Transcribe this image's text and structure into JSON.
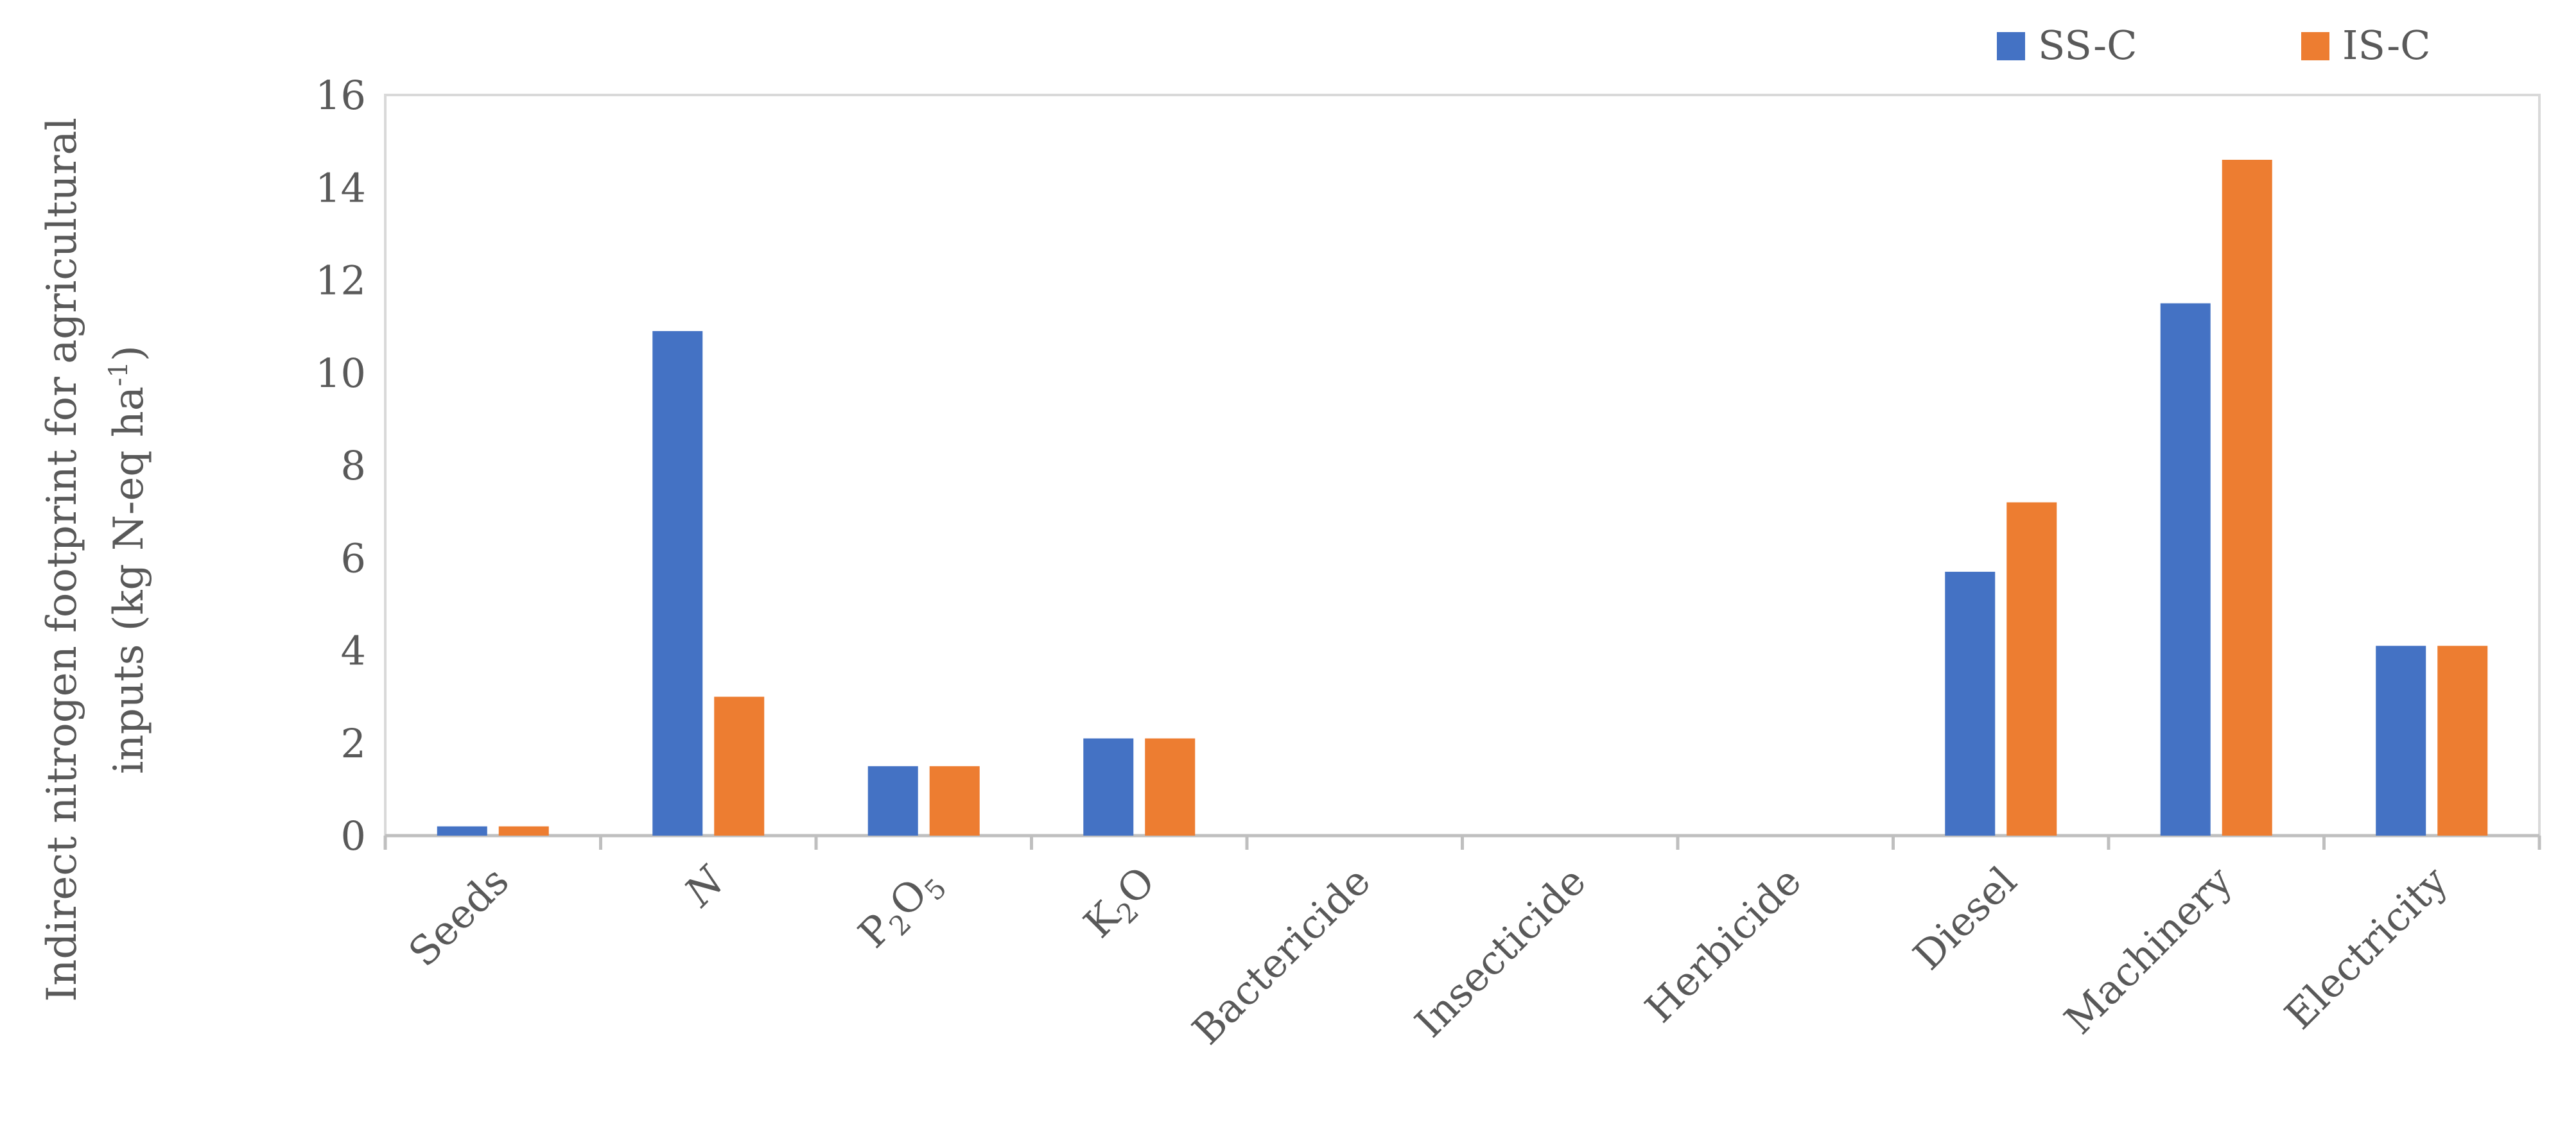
{
  "chart_data": {
    "type": "bar",
    "categories": [
      "Seeds",
      "N",
      "P2O5",
      "K2O",
      "Bactericide",
      "Insecticide",
      "Herbicide",
      "Diesel",
      "Machinery",
      "Electricity"
    ],
    "series": [
      {
        "name": "SS-C",
        "color": "#4472C4",
        "values": [
          0.2,
          10.9,
          1.5,
          2.1,
          0,
          0,
          0,
          5.7,
          11.5,
          4.1
        ]
      },
      {
        "name": "IS-C",
        "color": "#ED7D31",
        "values": [
          0.2,
          3.0,
          1.5,
          2.1,
          0,
          0,
          0,
          7.2,
          14.6,
          4.1
        ]
      }
    ],
    "ylim": [
      0,
      16
    ],
    "yticks": [
      0,
      2,
      4,
      6,
      8,
      10,
      12,
      14,
      16
    ],
    "ylabel_line1": "Indirect nitrogen footprint for agricultural",
    "ylabel_line2_pre": "inputs (kg N-eq ha",
    "ylabel_line2_sup": "-1",
    "ylabel_line2_post": ")",
    "xlabel": "",
    "grid": false,
    "legend_position": "top-right"
  }
}
